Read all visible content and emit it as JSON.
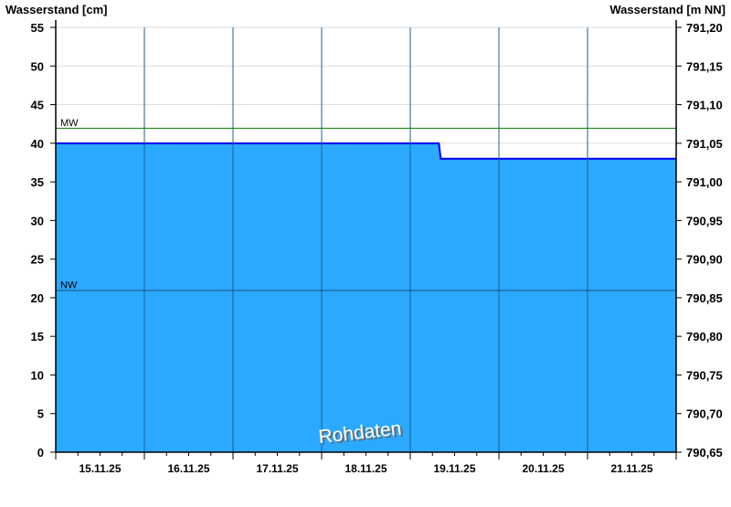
{
  "chart_data": {
    "type": "area",
    "title": "",
    "ylabel": "Wasserstand [cm]",
    "ylabel_right": "Wasserstand [m NN]",
    "ylim": [
      0,
      55
    ],
    "yticks": [
      0,
      5,
      10,
      15,
      20,
      25,
      30,
      35,
      40,
      45,
      50,
      55
    ],
    "ylim_right": [
      790.65,
      791.2
    ],
    "yticks_right": [
      "790,65",
      "790,70",
      "790,75",
      "790,80",
      "790,85",
      "790,90",
      "790,95",
      "791,00",
      "791,05",
      "791,10",
      "791,15",
      "791,20"
    ],
    "xlim": [
      "2025-11-15 00:00",
      "2025-11-22 00:00"
    ],
    "xtick_labels": [
      "15.11.25",
      "16.11.25",
      "17.11.25",
      "18.11.25",
      "19.11.25",
      "20.11.25",
      "21.11.25"
    ],
    "minor_tick_hours": 6,
    "grid": true,
    "series": [
      {
        "points": [
          {
            "t": "2025-11-15 00:00",
            "v": 40
          },
          {
            "t": "2025-11-19 07:45",
            "v": 40
          },
          {
            "t": "2025-11-19 08:15",
            "v": 38
          },
          {
            "t": "2025-11-22 00:00",
            "v": 38
          }
        ],
        "fill_color": "#2aa9ff",
        "line_color": "#0000ee"
      }
    ],
    "reference_lines": [
      {
        "label": "MW",
        "value": 42,
        "color": "#008000"
      },
      {
        "label": "NW",
        "value": 21,
        "color": "#1a4f80"
      }
    ],
    "watermark": "Rohdaten"
  }
}
